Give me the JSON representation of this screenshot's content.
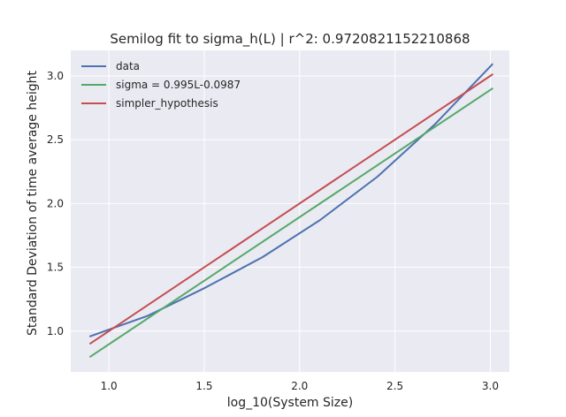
{
  "chart_data": {
    "type": "line",
    "title": "Semilog fit to sigma_h(L) | r^2: 0.9720821152210868",
    "xlabel": "log_10(System Size)",
    "ylabel": "Standard Deviation of time average height",
    "xlim": [
      0.8,
      3.1
    ],
    "ylim": [
      0.68,
      3.2
    ],
    "xticks": [
      1.0,
      1.5,
      2.0,
      2.5,
      3.0
    ],
    "xtick_labels": [
      "1.0",
      "1.5",
      "2.0",
      "2.5",
      "3.0"
    ],
    "yticks": [
      1.0,
      1.5,
      2.0,
      2.5,
      3.0
    ],
    "ytick_labels": [
      "1.0",
      "1.5",
      "2.0",
      "2.5",
      "3.0"
    ],
    "grid": true,
    "legend_position": "top-left",
    "series": [
      {
        "name": "data",
        "color": "#4c72b0",
        "x": [
          0.903,
          1.204,
          1.505,
          1.806,
          2.107,
          2.408,
          2.709,
          3.01
        ],
        "y": [
          0.96,
          1.12,
          1.34,
          1.58,
          1.87,
          2.21,
          2.62,
          3.09
        ]
      },
      {
        "name": "sigma = 0.995L-0.0987",
        "color": "#55a868",
        "x": [
          0.903,
          3.01
        ],
        "y": [
          0.8,
          2.9
        ]
      },
      {
        "name": "simpler_hypothesis",
        "color": "#c44e52",
        "x": [
          0.903,
          3.01
        ],
        "y": [
          0.903,
          3.01
        ]
      }
    ]
  }
}
